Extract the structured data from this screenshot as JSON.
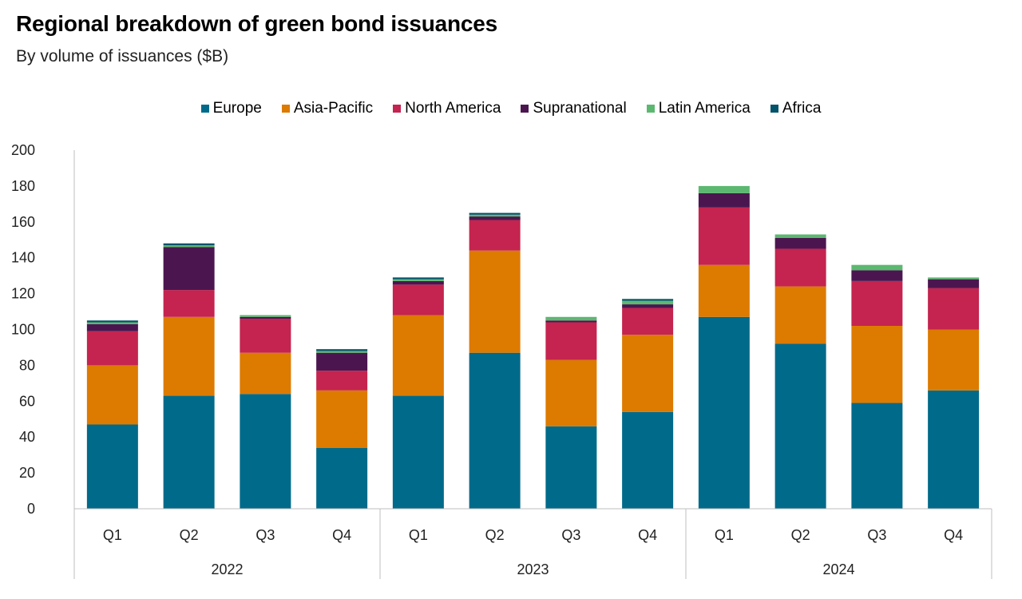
{
  "title": "Regional breakdown of green bond issuances",
  "subtitle": "By volume of issuances ($B)",
  "colors": {
    "Europe": "#006a8a",
    "Asia-Pacific": "#dd7a00",
    "North America": "#c4244f",
    "Supranational": "#4b1650",
    "Latin America": "#5cb870",
    "Africa": "#03536a"
  },
  "chart_data": {
    "type": "bar",
    "stacked": true,
    "title": "Regional breakdown of green bond issuances",
    "subtitle": "By volume of issuances ($B)",
    "categories": [
      "Q1",
      "Q2",
      "Q3",
      "Q4",
      "Q1",
      "Q2",
      "Q3",
      "Q4",
      "Q1",
      "Q2",
      "Q3",
      "Q4"
    ],
    "groups": [
      {
        "label": "2022",
        "categories": [
          "Q1",
          "Q2",
          "Q3",
          "Q4"
        ]
      },
      {
        "label": "2023",
        "categories": [
          "Q1",
          "Q2",
          "Q3",
          "Q4"
        ]
      },
      {
        "label": "2024",
        "categories": [
          "Q1",
          "Q2",
          "Q3",
          "Q4"
        ]
      }
    ],
    "series": [
      {
        "name": "Europe",
        "values": [
          47,
          63,
          64,
          34,
          63,
          87,
          46,
          54,
          107,
          92,
          59,
          66
        ]
      },
      {
        "name": "Asia-Pacific",
        "values": [
          33,
          44,
          23,
          32,
          45,
          57,
          37,
          43,
          29,
          32,
          43,
          34
        ]
      },
      {
        "name": "North America",
        "values": [
          19,
          15,
          19,
          11,
          17,
          17,
          21,
          15,
          32,
          21,
          25,
          23
        ]
      },
      {
        "name": "Supranational",
        "values": [
          4,
          24,
          1,
          10,
          2,
          2,
          1,
          2,
          8,
          6,
          6,
          5
        ]
      },
      {
        "name": "Latin America",
        "values": [
          1,
          1,
          1,
          1,
          1,
          1,
          2,
          2,
          4,
          2,
          3,
          1
        ]
      },
      {
        "name": "Africa",
        "values": [
          1,
          1,
          0,
          1,
          1,
          1,
          0,
          1,
          0,
          0,
          0,
          0
        ]
      }
    ],
    "ylim": [
      0,
      200
    ],
    "yticks": [
      0,
      20,
      40,
      60,
      80,
      100,
      120,
      140,
      160,
      180,
      200
    ],
    "grid": false,
    "legend_position": "top"
  }
}
